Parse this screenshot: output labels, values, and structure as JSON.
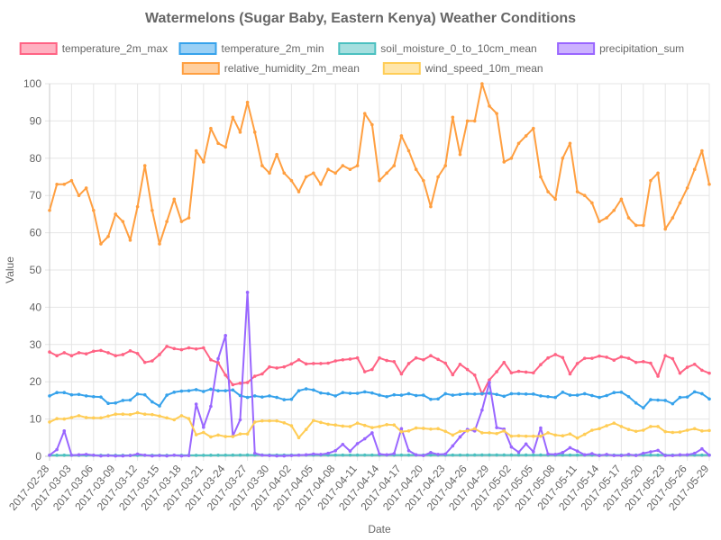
{
  "chart_data": {
    "type": "line",
    "title": "Watermelons (Sugar Baby, Eastern Kenya) Weather Conditions",
    "xlabel": "Date",
    "ylabel": "Value",
    "ylim": [
      0,
      100
    ],
    "yticks": [
      0,
      10,
      20,
      30,
      40,
      50,
      60,
      70,
      80,
      90,
      100
    ],
    "grid": true,
    "legend_position": "top",
    "x": [
      "2017-02-28",
      "2017-03-01",
      "2017-03-02",
      "2017-03-03",
      "2017-03-04",
      "2017-03-05",
      "2017-03-06",
      "2017-03-07",
      "2017-03-08",
      "2017-03-09",
      "2017-03-10",
      "2017-03-11",
      "2017-03-12",
      "2017-03-13",
      "2017-03-14",
      "2017-03-15",
      "2017-03-16",
      "2017-03-17",
      "2017-03-18",
      "2017-03-19",
      "2017-03-20",
      "2017-03-21",
      "2017-03-22",
      "2017-03-23",
      "2017-03-24",
      "2017-03-25",
      "2017-03-26",
      "2017-03-27",
      "2017-03-28",
      "2017-03-29",
      "2017-03-30",
      "2017-03-31",
      "2017-04-01",
      "2017-04-02",
      "2017-04-03",
      "2017-04-04",
      "2017-04-05",
      "2017-04-06",
      "2017-04-07",
      "2017-04-08",
      "2017-04-09",
      "2017-04-10",
      "2017-04-11",
      "2017-04-12",
      "2017-04-13",
      "2017-04-14",
      "2017-04-15",
      "2017-04-16",
      "2017-04-17",
      "2017-04-18",
      "2017-04-19",
      "2017-04-20",
      "2017-04-21",
      "2017-04-22",
      "2017-04-23",
      "2017-04-24",
      "2017-04-25",
      "2017-04-26",
      "2017-04-27",
      "2017-04-28",
      "2017-04-29",
      "2017-04-30",
      "2017-05-01",
      "2017-05-02",
      "2017-05-03",
      "2017-05-04",
      "2017-05-05",
      "2017-05-06",
      "2017-05-07",
      "2017-05-08",
      "2017-05-09",
      "2017-05-10",
      "2017-05-11",
      "2017-05-12",
      "2017-05-13",
      "2017-05-14",
      "2017-05-15",
      "2017-05-16",
      "2017-05-17",
      "2017-05-18",
      "2017-05-19",
      "2017-05-20",
      "2017-05-21",
      "2017-05-22",
      "2017-05-23",
      "2017-05-24",
      "2017-05-25",
      "2017-05-26",
      "2017-05-27",
      "2017-05-28",
      "2017-05-29"
    ],
    "xtick_labels": [
      "2017-02-28",
      "2017-03-03",
      "2017-03-06",
      "2017-03-09",
      "2017-03-12",
      "2017-03-15",
      "2017-03-18",
      "2017-03-21",
      "2017-03-24",
      "2017-03-27",
      "2017-03-30",
      "2017-04-02",
      "2017-04-05",
      "2017-04-08",
      "2017-04-11",
      "2017-04-14",
      "2017-04-17",
      "2017-04-20",
      "2017-04-23",
      "2017-04-26",
      "2017-04-29",
      "2017-05-02",
      "2017-05-05",
      "2017-05-08",
      "2017-05-11",
      "2017-05-14",
      "2017-05-17",
      "2017-05-20",
      "2017-05-23",
      "2017-05-26",
      "2017-05-29"
    ],
    "series": [
      {
        "name": "temperature_2m_max",
        "color": "#ff6384",
        "values": [
          28.0,
          27.0,
          27.8,
          27.0,
          27.8,
          27.5,
          28.2,
          28.4,
          27.8,
          27.0,
          27.3,
          28.3,
          27.6,
          25.2,
          25.6,
          27.3,
          29.5,
          28.9,
          28.6,
          29.1,
          28.8,
          29.1,
          25.9,
          25.1,
          21.8,
          19.2,
          19.6,
          19.8,
          21.5,
          22.1,
          24.0,
          23.7,
          24.0,
          24.8,
          25.9,
          24.8,
          24.9,
          24.9,
          25.0,
          25.6,
          25.9,
          26.1,
          26.4,
          22.7,
          23.3,
          26.4,
          25.7,
          25.4,
          22.1,
          24.9,
          26.4,
          25.9,
          27.0,
          26.0,
          25.0,
          21.9,
          24.7,
          23.3,
          21.8,
          16.7,
          20.5,
          22.7,
          25.2,
          22.4,
          22.8,
          22.6,
          22.4,
          24.6,
          26.4,
          27.3,
          26.5,
          22.1,
          24.9,
          26.3,
          26.3,
          26.9,
          26.6,
          25.8,
          26.7,
          26.3,
          25.2,
          25.4,
          25.0,
          21.5,
          27.0,
          26.2,
          22.3,
          23.9,
          24.7,
          23.1,
          22.3
        ]
      },
      {
        "name": "temperature_2m_min",
        "color": "#36a2eb",
        "values": [
          16.2,
          17.1,
          17.1,
          16.5,
          16.6,
          16.2,
          16.0,
          15.9,
          14.2,
          14.3,
          15.0,
          15.1,
          16.7,
          16.5,
          14.6,
          13.5,
          16.4,
          17.2,
          17.5,
          17.6,
          17.9,
          17.4,
          18.0,
          17.6,
          17.6,
          17.8,
          16.3,
          15.8,
          16.2,
          15.9,
          16.2,
          15.8,
          15.2,
          15.3,
          17.6,
          18.1,
          17.8,
          17.0,
          16.8,
          16.2,
          17.1,
          16.9,
          16.9,
          17.3,
          17.0,
          16.4,
          16.0,
          16.5,
          16.4,
          16.8,
          16.3,
          16.4,
          15.3,
          15.4,
          16.8,
          16.4,
          16.6,
          16.8,
          16.7,
          16.8,
          16.9,
          16.6,
          16.1,
          16.8,
          16.8,
          16.7,
          16.7,
          16.2,
          16.0,
          15.8,
          17.2,
          16.4,
          16.4,
          16.8,
          16.3,
          15.8,
          16.3,
          17.1,
          17.2,
          16.0,
          14.3,
          13.0,
          15.2,
          15.1,
          15.0,
          14.1,
          15.8,
          15.9,
          17.3,
          16.8,
          15.4
        ]
      },
      {
        "name": "soil_moisture_0_to_10cm_mean",
        "color": "#4bc0c0",
        "values": [
          0.28,
          0.28,
          0.29,
          0.28,
          0.27,
          0.27,
          0.26,
          0.26,
          0.26,
          0.25,
          0.25,
          0.25,
          0.26,
          0.26,
          0.26,
          0.26,
          0.25,
          0.26,
          0.26,
          0.26,
          0.27,
          0.27,
          0.28,
          0.29,
          0.3,
          0.31,
          0.33,
          0.34,
          0.34,
          0.34,
          0.33,
          0.33,
          0.32,
          0.32,
          0.32,
          0.32,
          0.32,
          0.32,
          0.32,
          0.32,
          0.32,
          0.32,
          0.32,
          0.32,
          0.32,
          0.32,
          0.32,
          0.32,
          0.32,
          0.32,
          0.32,
          0.32,
          0.32,
          0.32,
          0.32,
          0.32,
          0.32,
          0.33,
          0.34,
          0.35,
          0.35,
          0.35,
          0.34,
          0.34,
          0.34,
          0.34,
          0.34,
          0.34,
          0.33,
          0.33,
          0.33,
          0.33,
          0.33,
          0.33,
          0.33,
          0.33,
          0.33,
          0.33,
          0.33,
          0.33,
          0.33,
          0.33,
          0.33,
          0.33,
          0.33,
          0.33,
          0.33,
          0.33,
          0.33,
          0.33,
          0.33
        ]
      },
      {
        "name": "precipitation_sum",
        "color": "#9966ff",
        "values": [
          0.3,
          1.8,
          6.8,
          0.3,
          0.4,
          0.5,
          0.3,
          0.1,
          0.2,
          0.1,
          0.1,
          0.2,
          0.6,
          0.3,
          0.1,
          0.2,
          0.1,
          0.3,
          0.1,
          0.2,
          14.0,
          7.8,
          13.4,
          26.2,
          32.4,
          5.4,
          9.8,
          44.0,
          0.8,
          0.3,
          0.2,
          0.1,
          0.1,
          0.2,
          0.3,
          0.4,
          0.6,
          0.5,
          0.8,
          1.5,
          3.2,
          1.4,
          3.4,
          4.7,
          6.3,
          0.6,
          0.4,
          0.7,
          7.4,
          1.5,
          0.4,
          0.2,
          1.0,
          0.5,
          0.6,
          2.8,
          5.2,
          7.2,
          6.8,
          12.4,
          19.8,
          7.7,
          7.3,
          2.5,
          1.1,
          3.3,
          1.2,
          7.6,
          0.6,
          0.5,
          1.0,
          2.3,
          1.4,
          0.4,
          0.7,
          0.2,
          0.5,
          0.2,
          0.2,
          0.5,
          0.2,
          0.8,
          1.2,
          1.6,
          0.2,
          0.2,
          0.4,
          0.4,
          0.8,
          2.0,
          0.3
        ]
      },
      {
        "name": "relative_humidity_2m_mean",
        "color": "#ff9f40",
        "values": [
          66,
          73,
          73,
          74,
          70,
          72,
          66,
          57,
          59,
          65,
          63,
          58,
          67,
          78,
          66,
          57,
          63,
          69,
          63,
          64,
          82,
          79,
          88,
          84,
          83,
          91,
          87,
          95,
          87,
          78,
          76,
          81,
          76,
          74,
          71,
          75,
          76,
          73,
          77,
          76,
          78,
          77,
          78,
          92,
          89,
          74,
          76,
          78,
          86,
          82,
          77,
          74,
          67,
          75,
          78,
          91,
          81,
          90,
          90,
          100,
          94,
          92,
          79,
          80,
          84,
          86,
          88,
          75,
          71,
          69,
          80,
          84,
          71,
          70,
          68,
          63,
          64,
          66,
          69,
          64,
          62,
          62,
          74,
          76,
          61,
          64,
          68,
          72,
          77,
          82,
          73
        ]
      },
      {
        "name": "wind_speed_10m_mean",
        "color": "#ffcd56",
        "values": [
          9.2,
          10.1,
          10.0,
          10.4,
          10.9,
          10.4,
          10.3,
          10.3,
          10.8,
          11.3,
          11.3,
          11.2,
          11.7,
          11.3,
          11.2,
          10.8,
          10.3,
          9.8,
          10.9,
          10.1,
          5.8,
          6.4,
          5.2,
          5.7,
          5.3,
          5.3,
          6.0,
          6.0,
          9.2,
          9.5,
          9.5,
          9.5,
          9.0,
          8.2,
          5.0,
          7.2,
          9.6,
          9.1,
          8.6,
          8.4,
          8.1,
          8.0,
          8.9,
          8.3,
          7.7,
          8.0,
          8.5,
          8.4,
          6.6,
          6.8,
          7.6,
          7.5,
          7.3,
          7.4,
          6.7,
          5.7,
          6.7,
          6.8,
          7.4,
          6.3,
          6.3,
          6.1,
          6.8,
          5.4,
          5.5,
          5.4,
          5.4,
          5.4,
          6.3,
          5.7,
          5.5,
          6.0,
          4.9,
          5.9,
          7.0,
          7.4,
          8.2,
          8.9,
          8.0,
          7.2,
          6.7,
          7.0,
          8.0,
          8.0,
          6.6,
          6.4,
          6.5,
          7.0,
          7.4,
          6.8,
          6.9
        ]
      }
    ]
  }
}
